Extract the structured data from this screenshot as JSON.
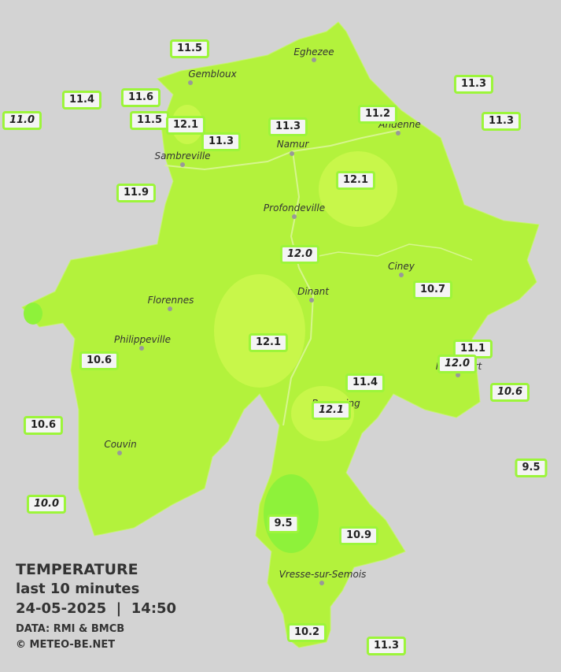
{
  "stations": [
    {
      "value": "11.5"
    },
    {
      "value": "11.4"
    },
    {
      "value": "11.6"
    },
    {
      "value": "11.0"
    },
    {
      "value": "11.5"
    },
    {
      "value": "12.1"
    },
    {
      "value": "11.3"
    },
    {
      "value": "11.3"
    },
    {
      "value": "11.2"
    },
    {
      "value": "11.3"
    },
    {
      "value": "11.3"
    },
    {
      "value": "11.9"
    },
    {
      "value": "12.1"
    },
    {
      "value": "12.0"
    },
    {
      "value": "10.7"
    },
    {
      "value": "12.1"
    },
    {
      "value": "10.6"
    },
    {
      "value": "11.1"
    },
    {
      "value": "12.0"
    },
    {
      "value": "11.4"
    },
    {
      "value": "10.6"
    },
    {
      "value": "12.1"
    },
    {
      "value": "10.6"
    },
    {
      "value": "9.5"
    },
    {
      "value": "10.0"
    },
    {
      "value": "9.5"
    },
    {
      "value": "10.9"
    },
    {
      "value": "10.2"
    },
    {
      "value": "11.3"
    }
  ],
  "cities": [
    {
      "name": "Eghezee"
    },
    {
      "name": "Gembloux"
    },
    {
      "name": "Andenne"
    },
    {
      "name": "Namur"
    },
    {
      "name": "Sambreville"
    },
    {
      "name": "Profondeville"
    },
    {
      "name": "Ciney"
    },
    {
      "name": "Dinant"
    },
    {
      "name": "Florennes"
    },
    {
      "name": "Philippeville"
    },
    {
      "name": "Rochefort"
    },
    {
      "name": "Beauraing"
    },
    {
      "name": "Couvin"
    },
    {
      "name": "Vresse-sur-Semois"
    }
  ],
  "legend": {
    "title": "TEMPERATURE",
    "period": "last 10 minutes",
    "datetime": "24-05-2025  |  14:50",
    "source": "DATA: RMI & BMCB",
    "credit": "© METEO-BE.NET"
  }
}
